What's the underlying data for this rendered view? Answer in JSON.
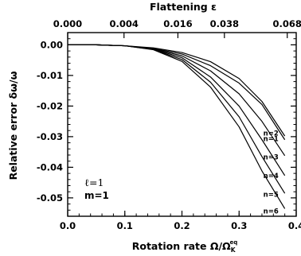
{
  "chart_data": {
    "type": "line",
    "xlabel_pre": "Rotation rate Ω/Ω",
    "xlabel_sub": "K",
    "xlabel_sup": "eq",
    "ylabel": "Relative error δω/ω",
    "top_xlabel": "Flattening ε",
    "xlim": [
      0.0,
      0.4
    ],
    "ylim": [
      -0.056,
      0.004
    ],
    "x_ticks": [
      0.0,
      0.1,
      0.2,
      0.3,
      0.4
    ],
    "x_tick_labels": [
      "0.0",
      "0.1",
      "0.2",
      "0.3",
      "0.4"
    ],
    "y_ticks": [
      0.0,
      -0.01,
      -0.02,
      -0.03,
      -0.04,
      -0.05
    ],
    "y_tick_labels": [
      "0.00",
      "-0.01",
      "-0.02",
      "-0.03",
      "-0.04",
      "-0.05"
    ],
    "top_tick_positions": [
      0.0,
      0.0986,
      0.1929,
      0.2743,
      0.3843
    ],
    "top_tick_labels": [
      "0.000",
      "0.004",
      "0.016",
      "0.038",
      "0.068"
    ],
    "annotation_l": "ℓ=1",
    "annotation_m": "m=1",
    "x": [
      0.0,
      0.05,
      0.1,
      0.15,
      0.2,
      0.25,
      0.3,
      0.34,
      0.38
    ],
    "series": [
      {
        "name": "n=2",
        "values": [
          0.0,
          0.0,
          -0.0003,
          -0.001,
          -0.0025,
          -0.0055,
          -0.011,
          -0.0185,
          -0.0298
        ]
      },
      {
        "name": "n=1",
        "values": [
          0.0,
          0.0,
          -0.0003,
          -0.0012,
          -0.003,
          -0.0068,
          -0.0125,
          -0.0195,
          -0.031
        ]
      },
      {
        "name": "n=3",
        "values": [
          0.0,
          0.0,
          -0.0003,
          -0.0013,
          -0.0036,
          -0.0085,
          -0.016,
          -0.025,
          -0.0362
        ]
      },
      {
        "name": "n=4",
        "values": [
          0.0,
          0.0,
          -0.0003,
          -0.0014,
          -0.0042,
          -0.0105,
          -0.02,
          -0.031,
          -0.0427
        ]
      },
      {
        "name": "n=5",
        "values": [
          0.0,
          0.0,
          -0.0003,
          -0.0015,
          -0.0048,
          -0.0122,
          -0.0235,
          -0.0365,
          -0.0485
        ]
      },
      {
        "name": "n=6",
        "values": [
          0.0,
          0.0,
          -0.0003,
          -0.0016,
          -0.0054,
          -0.0138,
          -0.0268,
          -0.0412,
          -0.0535
        ]
      }
    ],
    "label_y": [
      -0.0289,
      -0.0307,
      -0.0366,
      -0.0428,
      -0.0488,
      -0.0543
    ]
  }
}
